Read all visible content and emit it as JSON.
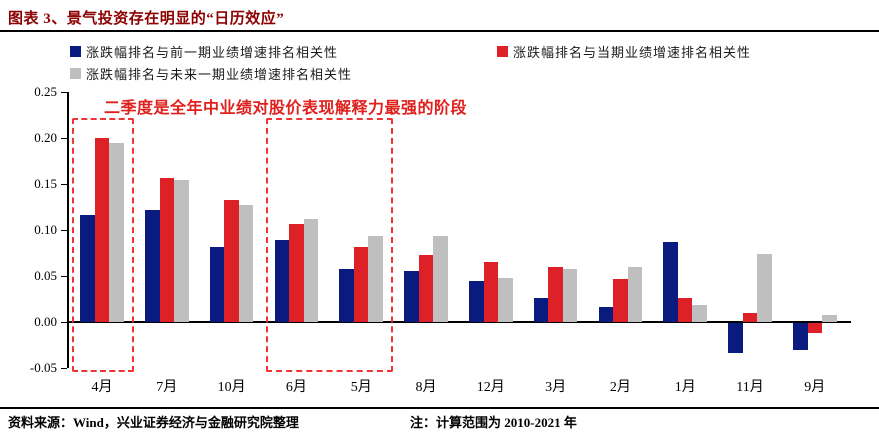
{
  "header": {
    "title": "图表 3、景气投资存在明显的“日历效应”"
  },
  "colors": {
    "title_maroon": "#8b0000",
    "annotation_red": "#e0201c",
    "highlight_box_red": "#ee3533",
    "axis_black": "#000000",
    "series_blue": "#0a1b7f",
    "series_red": "#dd2127",
    "series_gray": "#bfbfbf"
  },
  "chart_data": {
    "type": "bar",
    "title": "",
    "categories": [
      "4月",
      "7月",
      "10月",
      "6月",
      "5月",
      "8月",
      "12月",
      "3月",
      "2月",
      "1月",
      "11月",
      "9月"
    ],
    "series": [
      {
        "name": "涨跌幅排名与前一期业绩增速排名相关性",
        "color": "#0a1b7f",
        "values": [
          0.116,
          0.122,
          0.081,
          0.089,
          0.058,
          0.055,
          0.045,
          0.026,
          0.016,
          0.087,
          -0.033,
          -0.029
        ]
      },
      {
        "name": "涨跌幅排名与当期业绩增速排名相关性",
        "color": "#dd2127",
        "values": [
          0.2,
          0.156,
          0.133,
          0.106,
          0.082,
          0.073,
          0.065,
          0.06,
          0.047,
          0.026,
          0.01,
          -0.011
        ]
      },
      {
        "name": "涨跌幅排名与未来一期业绩增速排名相关性",
        "color": "#bfbfbf",
        "values": [
          0.195,
          0.154,
          0.127,
          0.112,
          0.094,
          0.093,
          0.048,
          0.058,
          0.06,
          0.018,
          0.074,
          0.008
        ]
      }
    ],
    "y_ticks": [
      0.25,
      0.2,
      0.15,
      0.1,
      0.05,
      0.0,
      -0.05
    ],
    "ylim": [
      -0.05,
      0.25
    ],
    "grid": false,
    "legend_position": "top",
    "annotation": "二季度是全年中业绩对股价表现解释力最强的阶段",
    "highlight_boxes": [
      {
        "from": "4月",
        "to": "4月"
      },
      {
        "from": "6月",
        "to": "5月"
      }
    ]
  },
  "footer": {
    "source": "资料来源：Wind，兴业证券经济与金融研究院整理",
    "note": "注：计算范围为 2010-2021 年"
  }
}
